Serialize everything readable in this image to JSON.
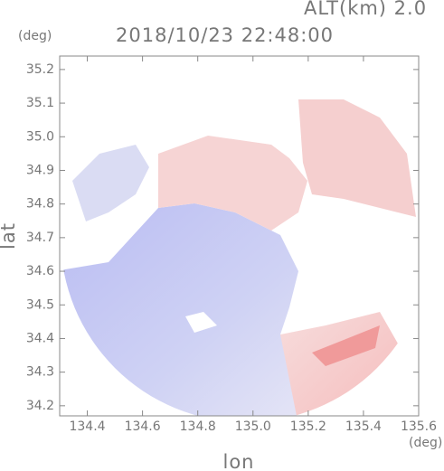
{
  "chart_data": {
    "type": "field",
    "title": "2018/10/23 22:48:00",
    "subtitle": "ALT(km) 2.0",
    "x_label": "lon",
    "y_label": "lat",
    "x_unit": "(deg)",
    "y_unit": "(deg)",
    "xlim": [
      134.3,
      135.6
    ],
    "ylim": [
      34.17,
      35.24
    ],
    "xticks": [
      134.4,
      134.6,
      134.8,
      {
        "value": 135,
        "label": "135.0"
      },
      135.2,
      135.4,
      135.6
    ],
    "yticks": [
      34.2,
      34.3,
      34.4,
      34.5,
      34.6,
      34.7,
      34.8,
      34.9,
      {
        "value": 35,
        "label": "35.0"
      },
      35.1,
      35.2
    ]
  }
}
